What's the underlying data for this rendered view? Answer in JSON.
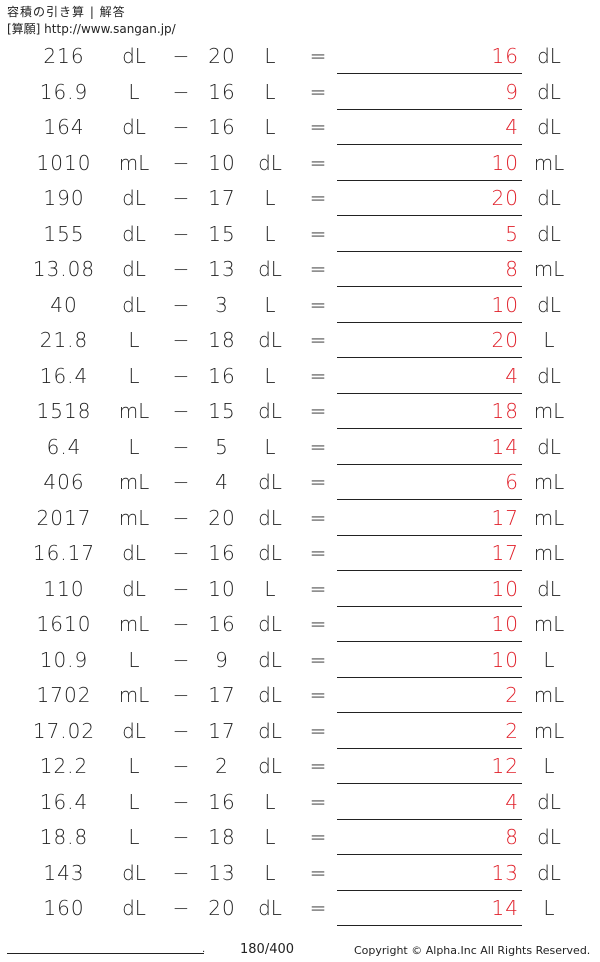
{
  "header": {
    "title": "容積の引き算 | 解答",
    "site": "[算願] http://www.sangan.jp/"
  },
  "operator": "−",
  "equals": "=",
  "answer_color": "#e0202a",
  "problems": [
    {
      "a": "216",
      "ua": "dL",
      "b": "20",
      "ub": "L",
      "ans": "16",
      "uans": "dL"
    },
    {
      "a": "16.9",
      "ua": "L",
      "b": "16",
      "ub": "L",
      "ans": "9",
      "uans": "dL"
    },
    {
      "a": "164",
      "ua": "dL",
      "b": "16",
      "ub": "L",
      "ans": "4",
      "uans": "dL"
    },
    {
      "a": "1010",
      "ua": "mL",
      "b": "10",
      "ub": "dL",
      "ans": "10",
      "uans": "mL"
    },
    {
      "a": "190",
      "ua": "dL",
      "b": "17",
      "ub": "L",
      "ans": "20",
      "uans": "dL"
    },
    {
      "a": "155",
      "ua": "dL",
      "b": "15",
      "ub": "L",
      "ans": "5",
      "uans": "dL"
    },
    {
      "a": "13.08",
      "ua": "dL",
      "b": "13",
      "ub": "dL",
      "ans": "8",
      "uans": "mL"
    },
    {
      "a": "40",
      "ua": "dL",
      "b": "3",
      "ub": "L",
      "ans": "10",
      "uans": "dL"
    },
    {
      "a": "21.8",
      "ua": "L",
      "b": "18",
      "ub": "dL",
      "ans": "20",
      "uans": "L"
    },
    {
      "a": "16.4",
      "ua": "L",
      "b": "16",
      "ub": "L",
      "ans": "4",
      "uans": "dL"
    },
    {
      "a": "1518",
      "ua": "mL",
      "b": "15",
      "ub": "dL",
      "ans": "18",
      "uans": "mL"
    },
    {
      "a": "6.4",
      "ua": "L",
      "b": "5",
      "ub": "L",
      "ans": "14",
      "uans": "dL"
    },
    {
      "a": "406",
      "ua": "mL",
      "b": "4",
      "ub": "dL",
      "ans": "6",
      "uans": "mL"
    },
    {
      "a": "2017",
      "ua": "mL",
      "b": "20",
      "ub": "dL",
      "ans": "17",
      "uans": "mL"
    },
    {
      "a": "16.17",
      "ua": "dL",
      "b": "16",
      "ub": "dL",
      "ans": "17",
      "uans": "mL"
    },
    {
      "a": "110",
      "ua": "dL",
      "b": "10",
      "ub": "L",
      "ans": "10",
      "uans": "dL"
    },
    {
      "a": "1610",
      "ua": "mL",
      "b": "16",
      "ub": "dL",
      "ans": "10",
      "uans": "mL"
    },
    {
      "a": "10.9",
      "ua": "L",
      "b": "9",
      "ub": "dL",
      "ans": "10",
      "uans": "L"
    },
    {
      "a": "1702",
      "ua": "mL",
      "b": "17",
      "ub": "dL",
      "ans": "2",
      "uans": "mL"
    },
    {
      "a": "17.02",
      "ua": "dL",
      "b": "17",
      "ub": "dL",
      "ans": "2",
      "uans": "mL"
    },
    {
      "a": "12.2",
      "ua": "L",
      "b": "2",
      "ub": "dL",
      "ans": "12",
      "uans": "L"
    },
    {
      "a": "16.4",
      "ua": "L",
      "b": "16",
      "ub": "L",
      "ans": "4",
      "uans": "dL"
    },
    {
      "a": "18.8",
      "ua": "L",
      "b": "18",
      "ub": "L",
      "ans": "8",
      "uans": "dL"
    },
    {
      "a": "143",
      "ua": "dL",
      "b": "13",
      "ub": "L",
      "ans": "13",
      "uans": "dL"
    },
    {
      "a": "160",
      "ua": "dL",
      "b": "20",
      "ub": "dL",
      "ans": "14",
      "uans": "L"
    }
  ],
  "footer": {
    "dot": ".",
    "page": "180/400",
    "copyright": "Copyright © Alpha.Inc All Rights Reserved."
  }
}
